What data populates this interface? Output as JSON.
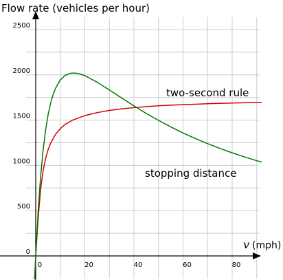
{
  "chart_data": {
    "type": "line",
    "ylabel": "Flow rate (vehicles per hour)",
    "xlabel_var": "v",
    "xlabel_unit": "(mph)",
    "xlim": [
      -2,
      92
    ],
    "ylim": [
      -270,
      2620
    ],
    "x_ticks": [
      0,
      20,
      40,
      60,
      80
    ],
    "x_tick_labels": [
      "0",
      "20",
      "40",
      "60",
      "80"
    ],
    "y_ticks": [
      0,
      500,
      1000,
      1500,
      2000,
      2500
    ],
    "y_tick_labels": [
      "0",
      "500",
      "1000",
      "1500",
      "2000",
      "2500"
    ],
    "grid": true,
    "series": [
      {
        "name": "two-second rule",
        "color": "#d10000",
        "x": [
          0,
          1,
          2,
          3,
          4,
          5,
          6,
          8,
          10,
          12,
          15,
          20,
          25,
          30,
          35,
          40,
          45,
          50,
          55,
          60,
          65,
          70,
          75,
          80,
          85,
          90,
          92
        ],
        "y": [
          0,
          418,
          738,
          940,
          1075,
          1170,
          1241,
          1340,
          1406,
          1453,
          1500,
          1550,
          1583,
          1607,
          1624,
          1638,
          1649,
          1658,
          1665,
          1671,
          1676,
          1681,
          1685,
          1689,
          1692,
          1695,
          1696
        ]
      },
      {
        "name": "stopping distance",
        "color": "#007a00",
        "x": [
          0,
          1,
          2,
          3,
          4,
          5,
          6,
          7,
          8,
          10,
          12,
          14,
          16,
          18,
          20,
          25,
          30,
          35,
          40,
          45,
          50,
          55,
          60,
          65,
          70,
          75,
          80,
          85,
          90,
          92
        ],
        "y": [
          0,
          498,
          878,
          1167,
          1386,
          1553,
          1680,
          1776,
          1848,
          1944,
          1995,
          2017,
          2020,
          2010,
          1991,
          1919,
          1833,
          1744,
          1657,
          1574,
          1497,
          1425,
          1358,
          1297,
          1240,
          1188,
          1139,
          1094,
          1052,
          1036
        ]
      }
    ]
  }
}
